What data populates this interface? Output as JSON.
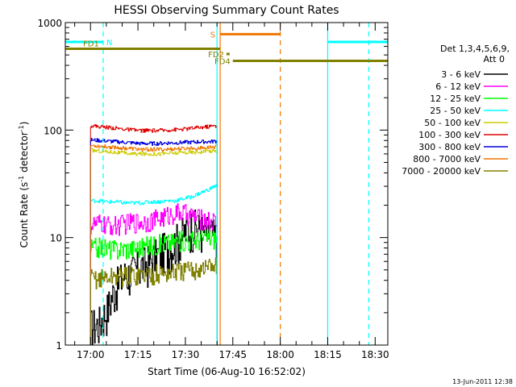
{
  "chart_data": {
    "type": "line",
    "title": "HESSI Observing Summary Count Rates",
    "xlabel": "Start Time (06-Aug-10 16:52:02)",
    "ylabel_main": "Count Rate (s",
    "ylabel_sup1": "-1",
    "ylabel_mid": " detector",
    "ylabel_sup2": "-1",
    "ylabel_end": ")",
    "y_scale": "log",
    "ylim": [
      1,
      1000
    ],
    "xlim": [
      "16:52:02",
      "18:34:00"
    ],
    "x_ticks": [
      "17:00",
      "17:15",
      "17:30",
      "17:45",
      "18:00",
      "18:15",
      "18:30"
    ],
    "y_ticks": [
      "1",
      "10",
      "100",
      "1000"
    ],
    "footer_date": "13-Jun-2011 12:38",
    "legend": {
      "placement": "right",
      "header_line1": "Det 1,3,4,5,6,9,",
      "header_line2": "Att 0",
      "entries": [
        {
          "label": "3 - 6 keV",
          "color": "#000000"
        },
        {
          "label": "6 - 12 keV",
          "color": "#ff00ff"
        },
        {
          "label": "12 - 25 keV",
          "color": "#00ff00"
        },
        {
          "label": "25 - 50 keV",
          "color": "#00ffff"
        },
        {
          "label": "50 - 100 keV",
          "color": "#cccc00"
        },
        {
          "label": "100 - 300 keV",
          "color": "#dd0000"
        },
        {
          "label": "300 - 800 keV",
          "color": "#0000dd"
        },
        {
          "label": "800 - 7000 keV",
          "color": "#ee7700"
        },
        {
          "label": "7000 - 20000 keV",
          "color": "#808000"
        }
      ]
    },
    "series": [
      {
        "name": "3 - 6 keV",
        "color": "#000000",
        "start": "17:00",
        "end": "17:40",
        "values": [
          1.5,
          1.6,
          2.2,
          3.5,
          4.5,
          4.8,
          5.5,
          6,
          7,
          8,
          9,
          11,
          13,
          12,
          11,
          10
        ]
      },
      {
        "name": "6 - 12 keV",
        "color": "#ff00ff",
        "start": "17:00",
        "end": "17:40",
        "values": [
          13,
          13.5,
          13,
          13,
          13.5,
          14,
          14,
          14.5,
          15,
          16,
          17,
          17,
          16,
          15,
          14.5,
          14
        ]
      },
      {
        "name": "12 - 25 keV",
        "color": "#00ff00",
        "start": "17:00",
        "end": "17:40",
        "values": [
          8,
          8.2,
          8,
          7.8,
          8,
          8,
          8.2,
          8.5,
          8.8,
          9,
          9.2,
          9.5,
          9.5,
          9.8,
          10,
          10
        ]
      },
      {
        "name": "25 - 50 keV",
        "color": "#00ffff",
        "start": "17:00",
        "end": "17:40",
        "values": [
          22,
          22,
          21.5,
          21.5,
          21,
          21,
          21,
          21.5,
          21.5,
          22,
          22,
          23,
          24,
          26,
          28,
          31
        ]
      },
      {
        "name": "50 - 100 keV",
        "color": "#cccc00",
        "start": "17:00",
        "end": "17:40",
        "values": [
          65,
          64,
          63,
          62,
          61,
          60,
          60,
          60,
          60,
          61,
          61,
          62,
          62,
          63,
          64,
          64
        ]
      },
      {
        "name": "100 - 300 keV",
        "color": "#dd0000",
        "start": "17:00",
        "end": "17:40",
        "values": [
          110,
          108,
          106,
          104,
          102,
          100,
          99,
          99,
          99,
          100,
          101,
          102,
          104,
          106,
          108,
          110
        ]
      },
      {
        "name": "300 - 800 keV",
        "color": "#0000dd",
        "start": "17:00",
        "end": "17:40",
        "values": [
          81,
          80,
          79,
          78,
          77,
          76,
          75,
          75,
          75,
          76,
          76,
          77,
          77,
          78,
          78,
          79
        ]
      },
      {
        "name": "800 - 7000 keV",
        "color": "#ee7700",
        "start": "17:00",
        "end": "17:40",
        "values": [
          72,
          71,
          70,
          69,
          68,
          67,
          66,
          66,
          66,
          66,
          67,
          67,
          68,
          68,
          69,
          70
        ]
      },
      {
        "name": "7000 - 20000 keV",
        "color": "#808000",
        "start": "17:00",
        "end": "17:40",
        "values": [
          4.2,
          4.2,
          4.3,
          4.4,
          4.4,
          4.5,
          4.5,
          4.6,
          4.6,
          4.7,
          4.8,
          4.9,
          5,
          5.2,
          5.4,
          5.5
        ]
      }
    ],
    "flag_bars": [
      {
        "label": "N",
        "color": "#00ffff",
        "start": "16:52:02",
        "end": "17:04",
        "level": 660
      },
      {
        "label": "",
        "color": "#00ffff",
        "start": "18:15",
        "end": "18:34:00",
        "level": 660
      },
      {
        "label": "S",
        "color": "#ee7700",
        "start": "17:41",
        "end": "18:00",
        "level": 780
      },
      {
        "label": "FD1",
        "color": "#808000",
        "start": "16:52:02",
        "end": "17:41",
        "level": 570
      },
      {
        "label": "FD2",
        "color": "#808000",
        "start": "17:43",
        "end": "17:44",
        "level": 510
      },
      {
        "label": "FD4",
        "color": "#808000",
        "start": "17:45",
        "end": "18:34:00",
        "level": 440
      }
    ],
    "markers": [
      {
        "time": "17:04",
        "color": "#00ffff",
        "style": "dashed"
      },
      {
        "time": "17:40",
        "color": "#00ffff",
        "style": "solid"
      },
      {
        "time": "17:41",
        "color": "#ee7700",
        "style": "solid"
      },
      {
        "time": "18:00",
        "color": "#ee7700",
        "style": "dashed"
      },
      {
        "time": "18:15",
        "color": "#00ffff",
        "style": "solid"
      },
      {
        "time": "18:28",
        "color": "#00ffff",
        "style": "dashed"
      }
    ]
  }
}
